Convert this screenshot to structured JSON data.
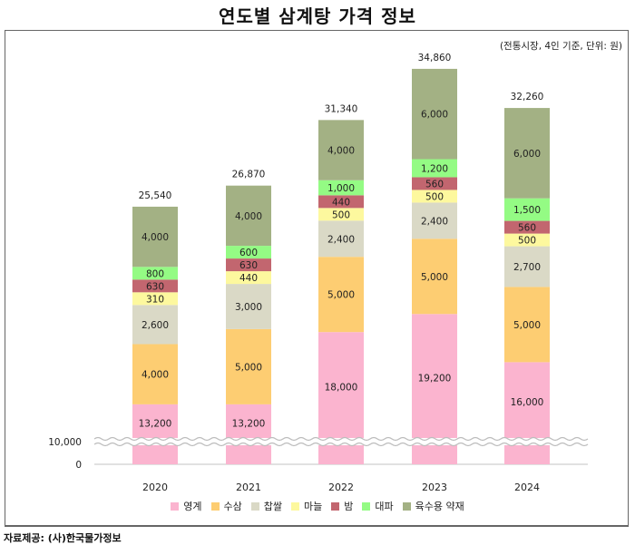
{
  "title": "연도별 삼계탕 가격 정보",
  "unit_note": "(전통시장, 4인 기준, 단위: 원)",
  "source": "자료제공: (사)한국물가정보",
  "chart_data": {
    "type": "bar",
    "stacked": true,
    "title": "연도별 삼계탕 가격 정보",
    "xlabel": "",
    "ylabel": "",
    "categories": [
      "2020",
      "2021",
      "2022",
      "2023",
      "2024"
    ],
    "series": [
      {
        "name": "영계",
        "color": "#fbb4cf",
        "values": [
          13200,
          13200,
          18000,
          19200,
          16000
        ]
      },
      {
        "name": "수삼",
        "color": "#fdcd72",
        "values": [
          4000,
          5000,
          5000,
          5000,
          5000
        ]
      },
      {
        "name": "찹쌀",
        "color": "#dad9c6",
        "values": [
          2600,
          3000,
          2400,
          2400,
          2700
        ]
      },
      {
        "name": "마늘",
        "color": "#fdf89e",
        "values": [
          310,
          440,
          500,
          500,
          500
        ]
      },
      {
        "name": "밤",
        "color": "#c2666f",
        "values": [
          630,
          630,
          440,
          560,
          560
        ]
      },
      {
        "name": "대파",
        "color": "#94fb84",
        "values": [
          800,
          600,
          1000,
          1200,
          1500
        ]
      },
      {
        "name": "육수용 약재",
        "color": "#a3b184",
        "values": [
          4000,
          4000,
          4000,
          6000,
          6000
        ]
      }
    ],
    "totals": [
      25540,
      26870,
      31340,
      34860,
      32260
    ],
    "value_labels": [
      [
        "13,200",
        "4,000",
        "2,600",
        "310",
        "630",
        "800",
        "4,000"
      ],
      [
        "13,200",
        "5,000",
        "3,000",
        "440",
        "630",
        "600",
        "4,000"
      ],
      [
        "18,000",
        "5,000",
        "2,400",
        "500",
        "440",
        "1,000",
        "4,000"
      ],
      [
        "19,200",
        "5,000",
        "2,400",
        "500",
        "560",
        "1,200",
        "6,000"
      ],
      [
        "16,000",
        "5,000",
        "2,700",
        "500",
        "560",
        "1,500",
        "6,000"
      ]
    ],
    "total_labels": [
      "25,540",
      "26,870",
      "31,340",
      "34,860",
      "32,260"
    ],
    "y_ticks": [
      0,
      10000
    ],
    "y_tick_labels": [
      "0",
      "10,000"
    ],
    "axis_break": {
      "between": [
        0,
        10000
      ]
    },
    "grid": false,
    "legend_position": "bottom"
  }
}
